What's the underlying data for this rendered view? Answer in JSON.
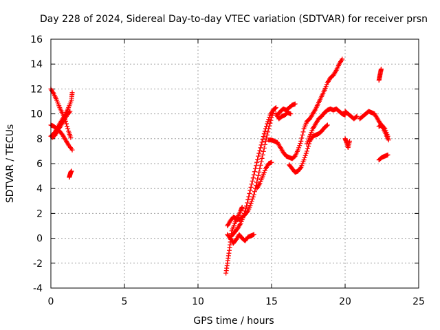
{
  "chart_data": {
    "type": "scatter",
    "title": "Day 228 of 2024, Sidereal Day-to-day VTEC variation (SDTVAR) for receiver prsn",
    "xlabel": "GPS time / hours",
    "ylabel": "SDTVAR / TECUs",
    "xlim": [
      0,
      25
    ],
    "ylim": [
      -4,
      16
    ],
    "xticks": [
      0,
      5,
      10,
      15,
      20,
      25
    ],
    "yticks": [
      -4,
      -2,
      0,
      2,
      4,
      6,
      8,
      10,
      12,
      14,
      16
    ],
    "grid": true,
    "marker": "plus",
    "color": "#ff0000",
    "segments": [
      [
        [
          0.0,
          12.0
        ],
        [
          0.2,
          11.6
        ],
        [
          0.4,
          11.1
        ],
        [
          0.6,
          10.5
        ],
        [
          0.8,
          10.0
        ],
        [
          1.0,
          9.4
        ],
        [
          1.2,
          8.6
        ],
        [
          1.35,
          8.1
        ]
      ],
      [
        [
          0.0,
          9.1
        ],
        [
          0.2,
          9.0
        ],
        [
          0.4,
          8.8
        ],
        [
          0.6,
          8.6
        ],
        [
          0.8,
          8.3
        ],
        [
          1.0,
          7.9
        ],
        [
          1.2,
          7.5
        ],
        [
          1.45,
          7.1
        ]
      ],
      [
        [
          0.0,
          8.2
        ],
        [
          0.2,
          8.4
        ],
        [
          0.4,
          8.8
        ],
        [
          0.6,
          9.2
        ],
        [
          0.8,
          9.6
        ],
        [
          1.0,
          10.0
        ],
        [
          1.2,
          10.5
        ],
        [
          1.4,
          11.1
        ],
        [
          1.45,
          11.7
        ]
      ],
      [
        [
          0.1,
          8.1
        ],
        [
          0.3,
          8.3
        ],
        [
          0.5,
          8.7
        ],
        [
          0.7,
          9.1
        ],
        [
          0.9,
          9.5
        ],
        [
          1.1,
          9.9
        ],
        [
          1.3,
          10.2
        ]
      ],
      [
        [
          1.25,
          4.9
        ],
        [
          1.3,
          5.1
        ],
        [
          1.35,
          5.3
        ],
        [
          1.4,
          5.4
        ]
      ],
      [
        [
          11.9,
          -2.8
        ],
        [
          12.0,
          -2.0
        ],
        [
          12.1,
          -1.2
        ],
        [
          12.2,
          -0.3
        ],
        [
          12.3,
          0.6
        ],
        [
          12.5,
          1.2
        ],
        [
          12.7,
          1.7
        ],
        [
          12.9,
          2.2
        ],
        [
          13.0,
          2.5
        ]
      ],
      [
        [
          12.0,
          0.3
        ],
        [
          12.2,
          0.0
        ],
        [
          12.4,
          -0.4
        ],
        [
          12.6,
          -0.1
        ],
        [
          12.8,
          0.3
        ],
        [
          13.0,
          0.0
        ],
        [
          13.2,
          -0.2
        ],
        [
          13.4,
          0.1
        ],
        [
          13.6,
          0.2
        ],
        [
          13.8,
          0.3
        ]
      ],
      [
        [
          12.0,
          1.0
        ],
        [
          12.2,
          1.4
        ],
        [
          12.4,
          1.7
        ],
        [
          12.6,
          1.6
        ],
        [
          12.8,
          1.5
        ],
        [
          13.0,
          1.7
        ],
        [
          13.2,
          1.9
        ],
        [
          13.4,
          2.2
        ],
        [
          13.6,
          2.8
        ],
        [
          13.8,
          3.5
        ],
        [
          14.0,
          4.5
        ],
        [
          14.2,
          5.6
        ],
        [
          14.4,
          6.7
        ],
        [
          14.6,
          7.8
        ],
        [
          14.8,
          8.8
        ],
        [
          15.0,
          9.7
        ],
        [
          15.2,
          10.4
        ]
      ],
      [
        [
          12.3,
          0.2
        ],
        [
          12.5,
          0.5
        ],
        [
          12.7,
          0.8
        ],
        [
          12.9,
          1.2
        ],
        [
          13.1,
          1.8
        ],
        [
          13.3,
          2.6
        ],
        [
          13.5,
          3.6
        ],
        [
          13.7,
          4.6
        ],
        [
          13.9,
          5.6
        ],
        [
          14.1,
          6.6
        ],
        [
          14.3,
          7.5
        ],
        [
          14.5,
          8.4
        ],
        [
          14.7,
          9.2
        ],
        [
          14.9,
          9.9
        ],
        [
          15.1,
          10.3
        ],
        [
          15.3,
          10.5
        ]
      ],
      [
        [
          14.8,
          7.9
        ],
        [
          15.0,
          7.9
        ],
        [
          15.2,
          7.8
        ],
        [
          15.4,
          7.7
        ],
        [
          15.6,
          7.3
        ],
        [
          15.8,
          6.9
        ],
        [
          16.0,
          6.6
        ],
        [
          16.2,
          6.5
        ],
        [
          16.4,
          6.4
        ],
        [
          16.6,
          6.6
        ],
        [
          16.8,
          7.1
        ],
        [
          17.0,
          7.8
        ],
        [
          17.2,
          8.8
        ],
        [
          17.4,
          9.4
        ],
        [
          17.6,
          9.6
        ],
        [
          17.8,
          10.0
        ],
        [
          18.0,
          10.4
        ],
        [
          18.2,
          10.9
        ],
        [
          18.4,
          11.4
        ],
        [
          18.6,
          11.9
        ],
        [
          18.8,
          12.5
        ],
        [
          19.0,
          12.9
        ],
        [
          19.2,
          13.1
        ],
        [
          19.4,
          13.5
        ],
        [
          19.6,
          14.0
        ],
        [
          19.8,
          14.4
        ]
      ],
      [
        [
          14.0,
          4.0
        ],
        [
          14.2,
          4.4
        ],
        [
          14.4,
          5.0
        ],
        [
          14.6,
          5.6
        ],
        [
          14.8,
          6.0
        ],
        [
          15.0,
          6.1
        ]
      ],
      [
        [
          15.4,
          9.9
        ],
        [
          15.6,
          10.2
        ],
        [
          15.8,
          10.4
        ],
        [
          16.0,
          10.3
        ],
        [
          16.2,
          10.5
        ],
        [
          16.4,
          10.7
        ],
        [
          16.6,
          10.8
        ]
      ],
      [
        [
          15.3,
          10.0
        ],
        [
          15.5,
          9.6
        ],
        [
          15.7,
          9.8
        ],
        [
          15.9,
          9.9
        ],
        [
          16.1,
          10.1
        ],
        [
          16.3,
          10.0
        ]
      ],
      [
        [
          16.2,
          5.9
        ],
        [
          16.4,
          5.6
        ],
        [
          16.6,
          5.3
        ],
        [
          16.8,
          5.4
        ],
        [
          17.0,
          5.7
        ],
        [
          17.2,
          6.3
        ],
        [
          17.4,
          7.0
        ],
        [
          17.6,
          7.8
        ],
        [
          17.8,
          8.2
        ],
        [
          18.0,
          8.3
        ],
        [
          18.2,
          8.4
        ],
        [
          18.4,
          8.6
        ],
        [
          18.6,
          8.9
        ],
        [
          18.8,
          9.1
        ]
      ],
      [
        [
          17.4,
          7.6
        ],
        [
          17.6,
          8.2
        ],
        [
          17.8,
          8.8
        ],
        [
          18.0,
          9.2
        ],
        [
          18.2,
          9.6
        ],
        [
          18.4,
          9.8
        ],
        [
          18.6,
          10.1
        ],
        [
          18.8,
          10.3
        ],
        [
          19.0,
          10.4
        ],
        [
          19.2,
          10.3
        ],
        [
          19.4,
          10.4
        ],
        [
          19.6,
          10.2
        ],
        [
          19.8,
          10.0
        ],
        [
          20.0,
          9.9
        ]
      ],
      [
        [
          20.0,
          8.0
        ],
        [
          20.1,
          7.7
        ],
        [
          20.2,
          7.3
        ],
        [
          20.3,
          7.8
        ]
      ],
      [
        [
          20.0,
          10.2
        ],
        [
          20.2,
          10.0
        ],
        [
          20.4,
          9.8
        ],
        [
          20.6,
          9.6
        ],
        [
          20.8,
          9.8
        ]
      ],
      [
        [
          21.0,
          9.6
        ],
        [
          21.2,
          9.8
        ],
        [
          21.4,
          10.0
        ],
        [
          21.6,
          10.2
        ],
        [
          21.8,
          10.1
        ],
        [
          22.0,
          10.0
        ],
        [
          22.2,
          9.6
        ],
        [
          22.4,
          9.2
        ],
        [
          22.6,
          8.8
        ],
        [
          22.8,
          8.3
        ],
        [
          22.95,
          7.9
        ]
      ],
      [
        [
          22.3,
          9.0
        ],
        [
          22.5,
          9.1
        ],
        [
          22.7,
          8.8
        ],
        [
          22.9,
          8.2
        ]
      ],
      [
        [
          22.3,
          12.7
        ],
        [
          22.35,
          13.0
        ],
        [
          22.4,
          13.3
        ],
        [
          22.45,
          13.6
        ]
      ],
      [
        [
          22.3,
          6.3
        ],
        [
          22.5,
          6.5
        ],
        [
          22.7,
          6.6
        ],
        [
          22.9,
          6.7
        ]
      ]
    ]
  }
}
